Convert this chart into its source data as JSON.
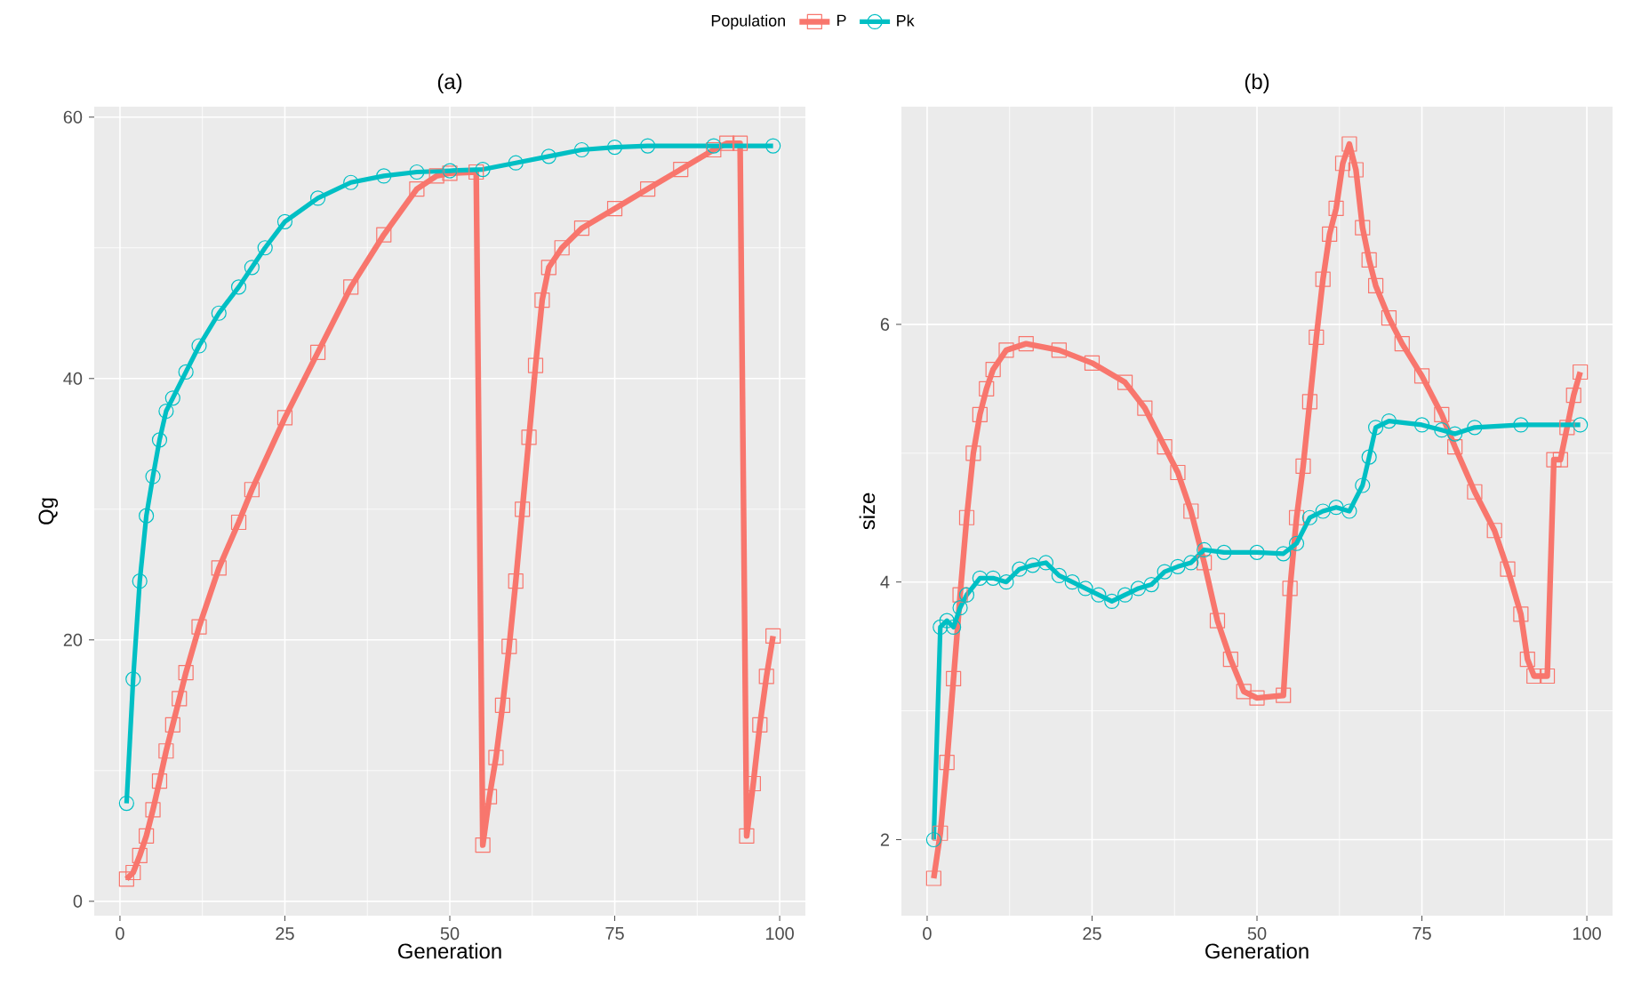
{
  "chart_data": [
    {
      "type": "line",
      "title": "(a)",
      "xlabel": "Generation",
      "ylabel": "Qg",
      "legend_title": "Population",
      "legend": "top",
      "grid": true,
      "xlim": [
        -3.9,
        103.9
      ],
      "ylim": [
        -1.1,
        60.8
      ],
      "xticks": [
        0,
        25,
        50,
        75,
        100
      ],
      "yticks": [
        0,
        20,
        40,
        60
      ],
      "series": [
        {
          "name": "P",
          "color": "#f8766d",
          "marker": "square",
          "x": [
            1,
            2,
            3,
            4,
            5,
            6,
            7,
            8,
            9,
            10,
            12,
            15,
            18,
            20,
            25,
            30,
            35,
            40,
            45,
            48,
            50,
            54,
            55,
            56,
            57,
            58,
            59,
            60,
            61,
            62,
            63,
            64,
            65,
            67,
            70,
            75,
            80,
            85,
            90,
            92,
            94,
            95,
            96,
            97,
            98,
            99
          ],
          "values": [
            1.7,
            2.2,
            3.5,
            5,
            7,
            9.2,
            11.5,
            13.5,
            15.5,
            17.5,
            21,
            25.5,
            29,
            31.5,
            37,
            42,
            47,
            51,
            54.5,
            55.5,
            55.7,
            55.8,
            4.3,
            8,
            11,
            15,
            19.5,
            24.5,
            30,
            35.5,
            41,
            46,
            48.5,
            50,
            51.5,
            53,
            54.5,
            56,
            57.5,
            58,
            58,
            5,
            9,
            13.5,
            17.2,
            20.3
          ]
        },
        {
          "name": "Pk",
          "color": "#00bfc4",
          "marker": "circle",
          "x": [
            1,
            2,
            3,
            4,
            5,
            6,
            7,
            8,
            10,
            12,
            15,
            18,
            20,
            22,
            25,
            30,
            35,
            40,
            45,
            50,
            55,
            60,
            65,
            70,
            75,
            80,
            90,
            99
          ],
          "values": [
            7.5,
            17,
            24.5,
            29.5,
            32.5,
            35.3,
            37.5,
            38.5,
            40.5,
            42.5,
            45,
            47,
            48.5,
            50,
            52,
            53.8,
            55,
            55.5,
            55.8,
            55.9,
            56,
            56.5,
            57,
            57.5,
            57.7,
            57.8,
            57.8,
            57.8
          ]
        }
      ]
    },
    {
      "type": "line",
      "title": "(b)",
      "xlabel": "Generation",
      "ylabel": "size",
      "grid": true,
      "xlim": [
        -3.9,
        103.9
      ],
      "ylim": [
        1.41,
        7.69
      ],
      "xticks": [
        0,
        25,
        50,
        75,
        100
      ],
      "yticks": [
        2,
        4,
        6
      ],
      "series": [
        {
          "color": "#f8766d",
          "marker": "square",
          "x": [
            1,
            2,
            3,
            4,
            5,
            6,
            7,
            8,
            9,
            10,
            12,
            15,
            20,
            25,
            30,
            33,
            36,
            38,
            40,
            42,
            44,
            46,
            48,
            50,
            54,
            55,
            56,
            57,
            58,
            59,
            60,
            61,
            62,
            63,
            64,
            65,
            66,
            67,
            68,
            70,
            72,
            75,
            78,
            80,
            83,
            86,
            88,
            90,
            91,
            92,
            94,
            95,
            96,
            97,
            98,
            99
          ],
          "values": [
            1.7,
            2.05,
            2.6,
            3.25,
            3.9,
            4.5,
            5,
            5.3,
            5.5,
            5.65,
            5.8,
            5.85,
            5.8,
            5.7,
            5.55,
            5.35,
            5.05,
            4.85,
            4.55,
            4.15,
            3.7,
            3.4,
            3.15,
            3.1,
            3.12,
            3.95,
            4.5,
            4.9,
            5.4,
            5.9,
            6.35,
            6.7,
            6.9,
            7.25,
            7.4,
            7.2,
            6.75,
            6.5,
            6.3,
            6.05,
            5.85,
            5.6,
            5.3,
            5.05,
            4.7,
            4.4,
            4.1,
            3.75,
            3.4,
            3.27,
            3.27,
            4.95,
            4.95,
            5.2,
            5.45,
            5.63
          ]
        },
        {
          "color": "#00bfc4",
          "marker": "circle",
          "x": [
            1,
            2,
            3,
            4,
            5,
            6,
            8,
            10,
            12,
            14,
            16,
            18,
            20,
            22,
            24,
            26,
            28,
            30,
            32,
            34,
            36,
            38,
            40,
            42,
            45,
            50,
            54,
            56,
            58,
            60,
            62,
            64,
            66,
            67,
            68,
            70,
            75,
            78,
            80,
            83,
            90,
            99
          ],
          "values": [
            2.0,
            3.65,
            3.7,
            3.65,
            3.8,
            3.9,
            4.03,
            4.03,
            4.0,
            4.1,
            4.13,
            4.15,
            4.05,
            4.0,
            3.95,
            3.9,
            3.85,
            3.9,
            3.95,
            3.98,
            4.08,
            4.12,
            4.15,
            4.25,
            4.23,
            4.23,
            4.22,
            4.3,
            4.5,
            4.55,
            4.58,
            4.55,
            4.75,
            4.97,
            5.2,
            5.25,
            5.22,
            5.18,
            5.15,
            5.2,
            5.22,
            5.22
          ]
        }
      ]
    }
  ]
}
